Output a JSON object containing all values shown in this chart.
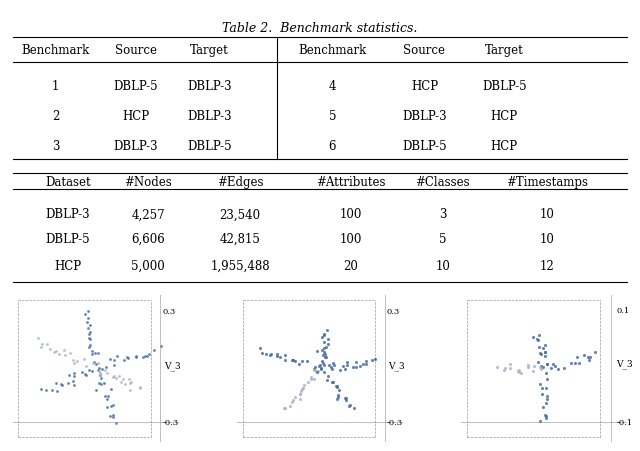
{
  "title": "Table 2.  Benchmark statistics.",
  "table1_headers": [
    "Benchmark",
    "Source",
    "Target",
    "Benchmark",
    "Source",
    "Target"
  ],
  "table1_rows": [
    [
      "1",
      "DBLP-5",
      "DBLP-3",
      "4",
      "HCP",
      "DBLP-5"
    ],
    [
      "2",
      "HCP",
      "DBLP-3",
      "5",
      "DBLP-3",
      "HCP"
    ],
    [
      "3",
      "DBLP-3",
      "DBLP-5",
      "6",
      "DBLP-5",
      "HCP"
    ]
  ],
  "table2_headers": [
    "Dataset",
    "#Nodes",
    "#Edges",
    "#Attributes",
    "#Classes",
    "#Timestamps"
  ],
  "table2_rows": [
    [
      "DBLP-3",
      "4,257",
      "23,540",
      "100",
      "3",
      "10"
    ],
    [
      "DBLP-5",
      "6,606",
      "42,815",
      "100",
      "5",
      "10"
    ],
    [
      "HCP",
      "5,000",
      "1,955,488",
      "20",
      "10",
      "12"
    ]
  ],
  "bg_color": "#ffffff",
  "text_color": "#000000",
  "line_color": "#000000",
  "scatter_color": "#4a6fa5",
  "scatter_color2": "#aab4c8"
}
